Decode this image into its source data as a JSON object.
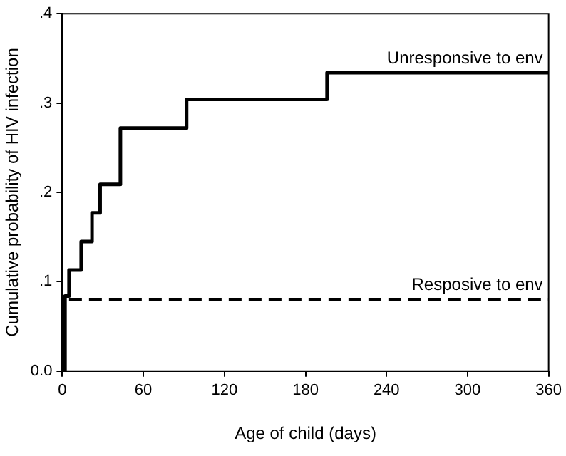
{
  "chart_data": {
    "type": "step",
    "xlabel": "Age of child (days)",
    "ylabel": "Cumulative probability of HIV infection",
    "xlim": [
      0,
      360
    ],
    "xticks": [
      0,
      60,
      120,
      180,
      240,
      300,
      360
    ],
    "ylim": [
      0,
      0.4
    ],
    "yticks": [
      {
        "value": 0,
        "label": "0.0"
      },
      {
        "value": 0.1,
        "label": ".1"
      },
      {
        "value": 0.2,
        "label": ".2"
      },
      {
        "value": 0.3,
        "label": ".3"
      },
      {
        "value": 0.4,
        "label": ".4"
      }
    ],
    "grid": false,
    "legend": false,
    "series": [
      {
        "name": "Unresponsive to env",
        "color": "#000000",
        "line_style": "solid",
        "x": [
          0,
          2,
          5,
          14,
          22,
          28,
          43,
          92,
          196,
          360
        ],
        "values": [
          0,
          0.084,
          0.113,
          0.145,
          0.177,
          0.209,
          0.272,
          0.304,
          0.334,
          0.334
        ]
      },
      {
        "name": "Resposive to env",
        "color": "#000000",
        "line_style": "dashed",
        "x": [
          5,
          360
        ],
        "values": [
          0.08,
          0.08
        ]
      }
    ]
  }
}
